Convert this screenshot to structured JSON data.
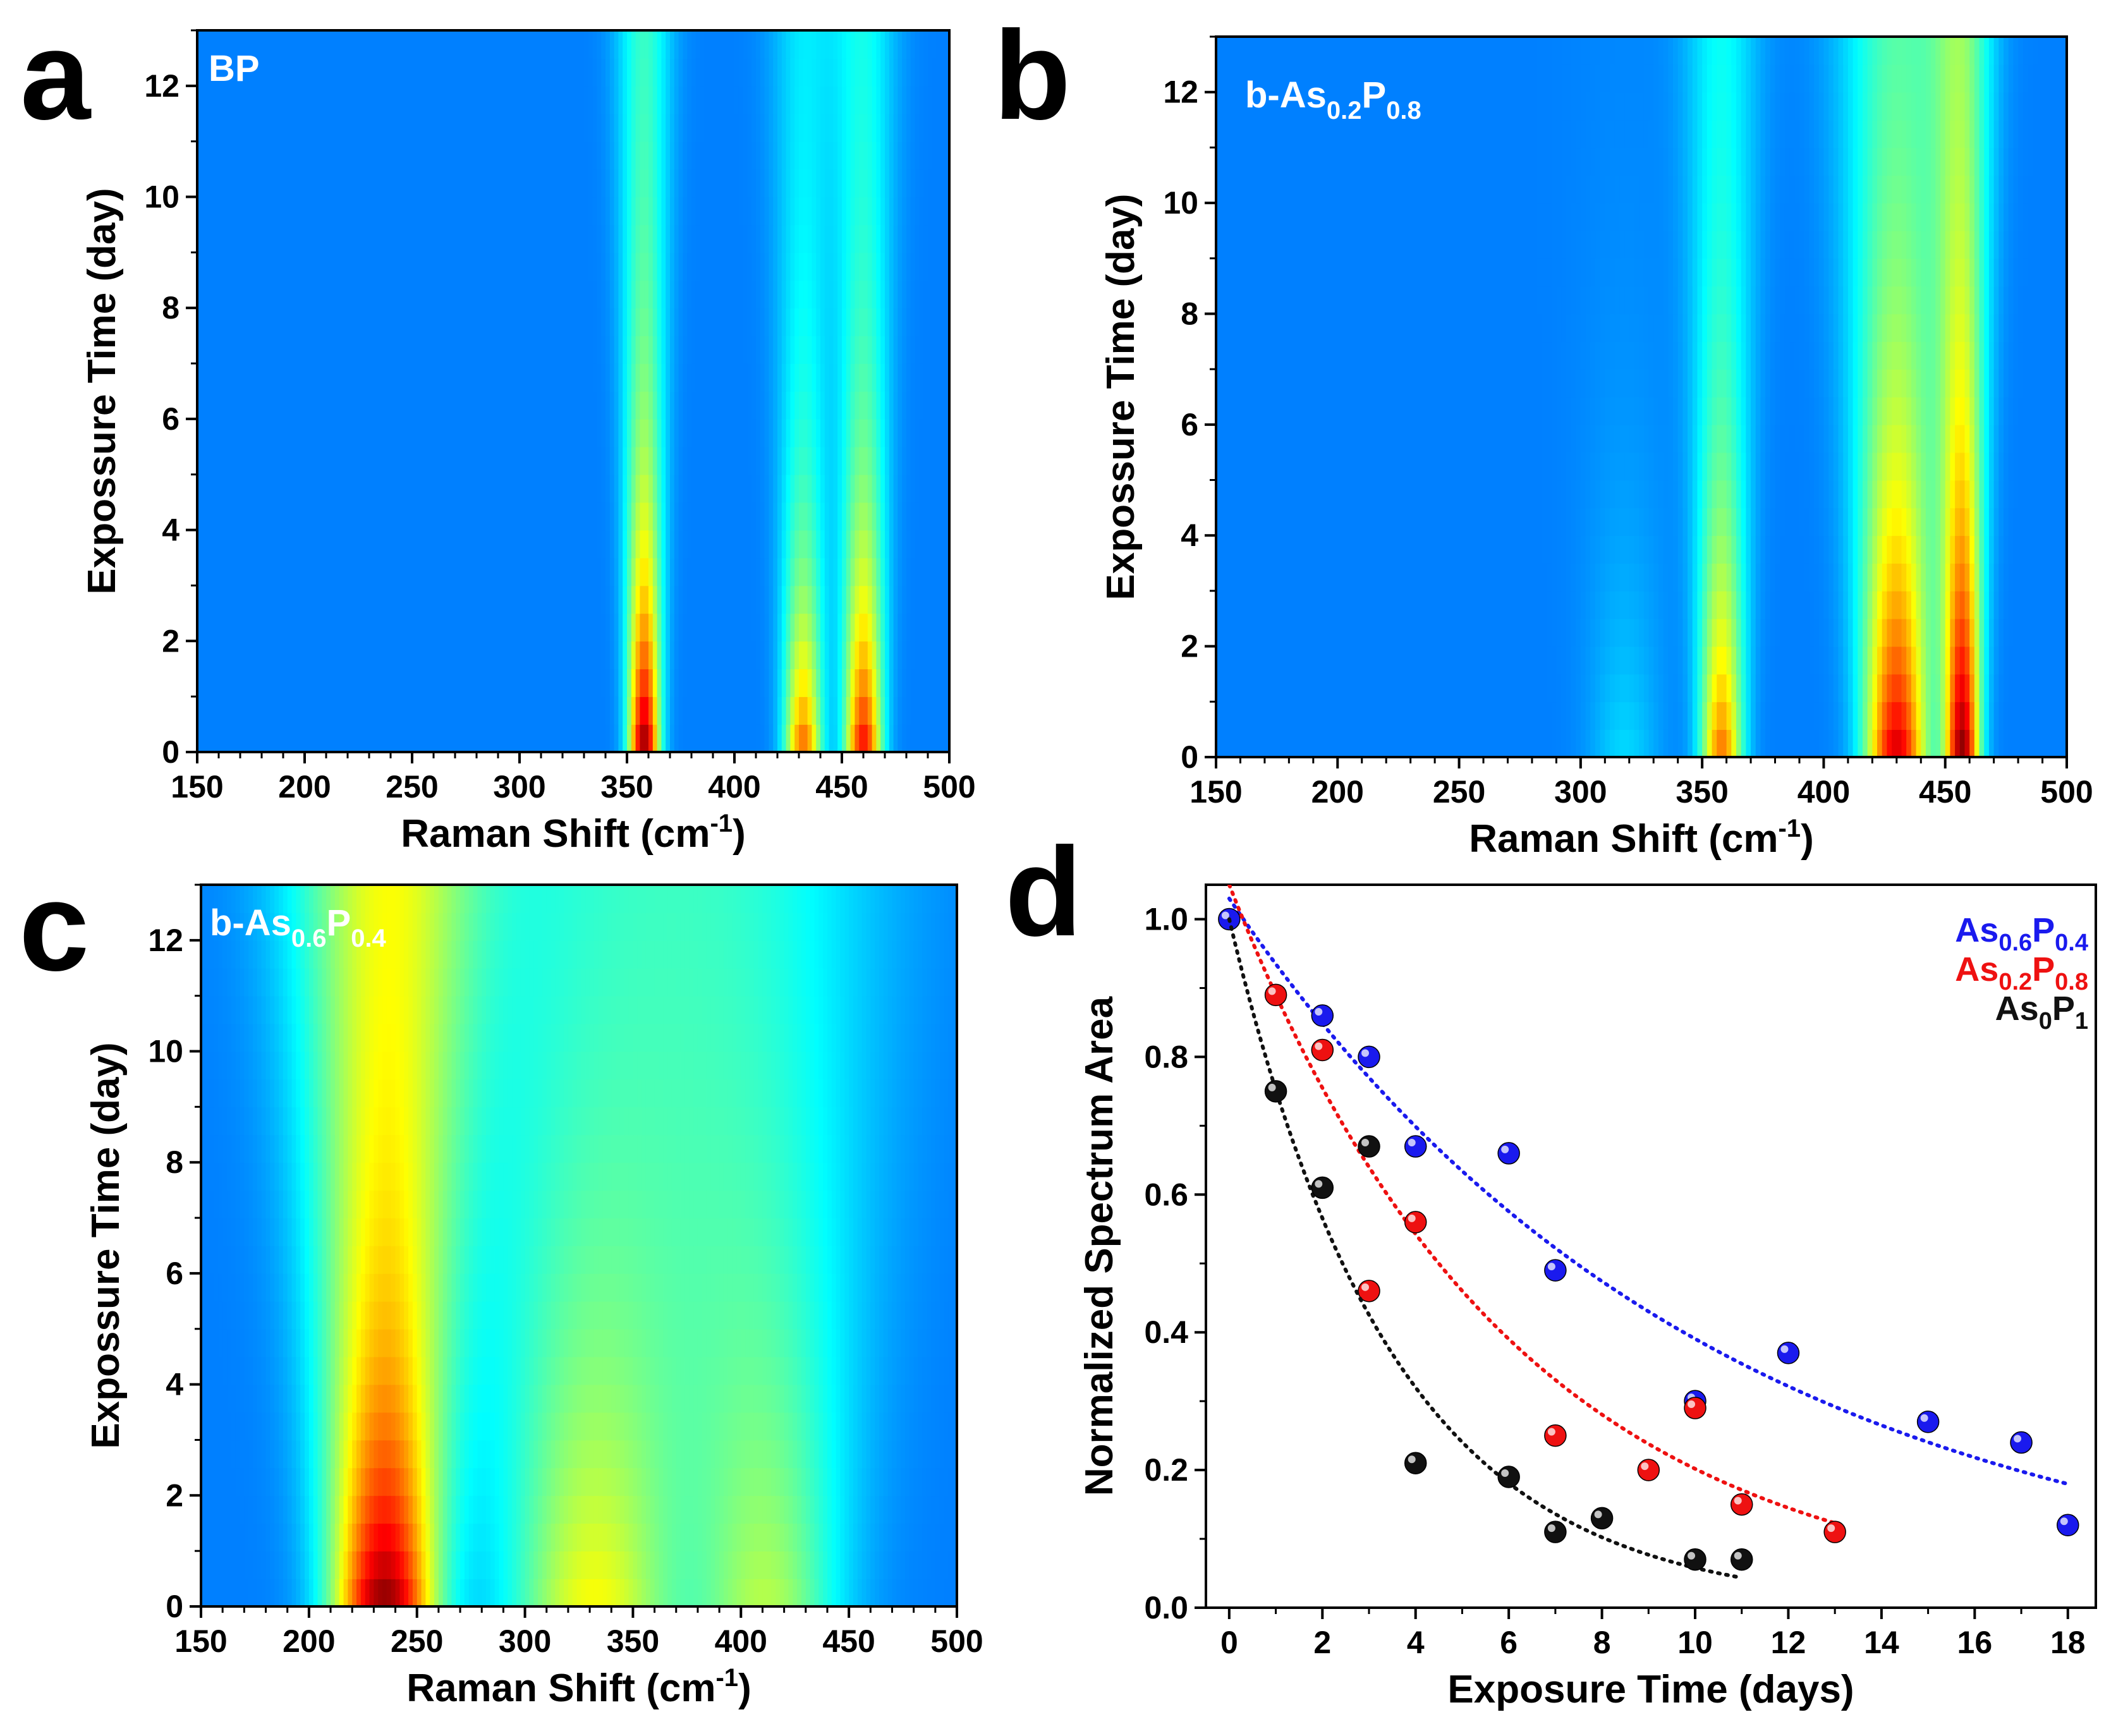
{
  "chart_data": [
    {
      "type": "heatmap",
      "panel": "a",
      "label": "BP",
      "label_main": "BP",
      "label_sub1": "",
      "label_mid": "",
      "label_sub2": "",
      "xlabel": "Raman Shift (cm",
      "xlabel_sup": "-1",
      "xlabel_end": ")",
      "ylabel": "Expossure Time (day)",
      "xlim": [
        150,
        500
      ],
      "ylim": [
        0,
        13
      ],
      "x_ticks": [
        150,
        200,
        250,
        300,
        350,
        400,
        450,
        500
      ],
      "y_ticks": [
        0,
        2,
        4,
        6,
        8,
        10,
        12
      ],
      "peaks": [
        {
          "center": 358,
          "width": 5,
          "peak_intensity": 1.0,
          "decay_day": 3.5,
          "tail": 0.22
        },
        {
          "center": 432,
          "width": 6,
          "peak_intensity": 0.72,
          "decay_day": 3.0,
          "tail": 0.18
        },
        {
          "center": 460,
          "width": 6,
          "peak_intensity": 0.85,
          "decay_day": 3.5,
          "tail": 0.2
        }
      ]
    },
    {
      "type": "heatmap",
      "panel": "b",
      "label": "b-As0.2P0.8",
      "label_main": "b-As",
      "label_sub1": "0.2",
      "label_mid": "P",
      "label_sub2": "0.8",
      "xlabel": "Raman Shift (cm",
      "xlabel_sup": "-1",
      "xlabel_end": ")",
      "ylabel": "Expossure Time (day)",
      "xlim": [
        150,
        500
      ],
      "ylim": [
        0,
        13
      ],
      "x_ticks": [
        150,
        200,
        250,
        300,
        350,
        400,
        450,
        500
      ],
      "y_ticks": [
        0,
        2,
        4,
        6,
        8,
        10,
        12
      ],
      "peaks": [
        {
          "center": 358,
          "width": 6,
          "peak_intensity": 0.7,
          "decay_day": 4.0,
          "tail": 0.22
        },
        {
          "center": 430,
          "width": 9,
          "peak_intensity": 0.9,
          "decay_day": 5.0,
          "tail": 0.25
        },
        {
          "center": 457,
          "width": 5,
          "peak_intensity": 1.0,
          "decay_day": 5.0,
          "tail": 0.25
        },
        {
          "center": 318,
          "width": 10,
          "peak_intensity": 0.12,
          "decay_day": 4.0,
          "tail": 0.05
        }
      ]
    },
    {
      "type": "heatmap",
      "panel": "c",
      "label": "b-As0.6P0.4",
      "label_main": "b-As",
      "label_sub1": "0.6",
      "label_mid": "P",
      "label_sub2": "0.4",
      "xlabel": "Raman Shift (cm",
      "xlabel_sup": "-1",
      "xlabel_end": ")",
      "ylabel": "Expossure Time (day)",
      "xlim": [
        150,
        500
      ],
      "ylim": [
        0,
        13
      ],
      "x_ticks": [
        150,
        200,
        250,
        300,
        350,
        400,
        450,
        500
      ],
      "y_ticks": [
        0,
        2,
        4,
        6,
        8,
        10,
        12
      ],
      "peaks": [
        {
          "center": 235,
          "width": 17,
          "peak_intensity": 1.0,
          "decay_day": 3.5,
          "tail": 0.45
        },
        {
          "center": 332,
          "width": 28,
          "peak_intensity": 0.5,
          "decay_day": 6.5,
          "tail": 0.3
        },
        {
          "center": 412,
          "width": 24,
          "peak_intensity": 0.4,
          "decay_day": 7.0,
          "tail": 0.28
        }
      ]
    },
    {
      "type": "scatter",
      "panel": "d",
      "xlabel": "Exposure Time (days)",
      "ylabel": "Normalized Spectrum Area",
      "xlim": [
        -0.5,
        18.6
      ],
      "ylim": [
        0,
        1.05
      ],
      "x_ticks": [
        0,
        2,
        4,
        6,
        8,
        10,
        12,
        14,
        16,
        18
      ],
      "y_ticks": [
        0.0,
        0.2,
        0.4,
        0.6,
        0.8,
        1.0
      ],
      "series": [
        {
          "name": "As0.6P0.4",
          "name_main": "As",
          "name_sub1": "0.6",
          "name_mid": "P",
          "name_sub2": "0.4",
          "color": "#1a1aee",
          "x": [
            0,
            2,
            3,
            4,
            6,
            7,
            10,
            12,
            15,
            17,
            18
          ],
          "y": [
            1.0,
            0.86,
            0.8,
            0.67,
            0.66,
            0.49,
            0.3,
            0.37,
            0.27,
            0.24,
            0.12
          ],
          "fit": {
            "a": 1.03,
            "k": 0.097,
            "x_start": 0,
            "x_end": 18
          }
        },
        {
          "name": "As0.2P0.8",
          "name_main": "As",
          "name_sub1": "0.2",
          "name_mid": "P",
          "name_sub2": "0.8",
          "color": "#ee1111",
          "x": [
            1,
            2,
            3,
            4,
            7,
            9,
            10,
            11,
            13
          ],
          "y": [
            0.89,
            0.81,
            0.46,
            0.56,
            0.25,
            0.2,
            0.29,
            0.15,
            0.11
          ],
          "fit": {
            "a": 1.05,
            "k": 0.165,
            "x_start": 0,
            "x_end": 13
          }
        },
        {
          "name": "As0P1",
          "name_main": "As",
          "name_sub1": "0",
          "name_mid": "P",
          "name_sub2": "1",
          "color": "#111111",
          "x": [
            1,
            2,
            3,
            4,
            6,
            7,
            8,
            10,
            11
          ],
          "y": [
            0.75,
            0.61,
            0.67,
            0.21,
            0.19,
            0.11,
            0.13,
            0.07,
            0.07
          ],
          "fit": {
            "a": 1.0,
            "k": 0.285,
            "x_start": 0,
            "x_end": 11
          }
        }
      ]
    }
  ]
}
